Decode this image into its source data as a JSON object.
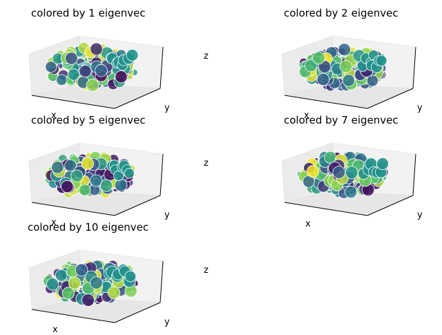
{
  "chart_data": [
    {
      "type": "scatter",
      "title": "colored by 1 eigenvec",
      "xlabel": "x",
      "ylabel": "y",
      "zlabel": "z",
      "colormap": "viridis",
      "grid": true
    },
    {
      "type": "scatter",
      "title": "colored by 2 eigenvec",
      "xlabel": "x",
      "ylabel": "y",
      "zlabel": "",
      "colormap": "viridis",
      "grid": true
    },
    {
      "type": "scatter",
      "title": "colored by 5 eigenvec",
      "xlabel": "x",
      "ylabel": "y",
      "zlabel": "z",
      "colormap": "viridis",
      "grid": true
    },
    {
      "type": "scatter",
      "title": "colored by 7 eigenvec",
      "xlabel": "x",
      "ylabel": "y",
      "zlabel": "",
      "colormap": "viridis",
      "grid": true
    },
    {
      "type": "scatter",
      "title": "colored by 10 eigenvec",
      "xlabel": "x",
      "ylabel": "y",
      "zlabel": "z",
      "colormap": "viridis",
      "grid": true
    }
  ],
  "colors": {
    "pane_left": "#ebebeb",
    "pane_right": "#f2f2f2",
    "pane_floor": "#e6e6e6",
    "axis_line": "#000000",
    "marker_edge": "#ffffff",
    "viridis": [
      "#440154",
      "#3b528b",
      "#21918c",
      "#5ec962",
      "#fde725"
    ]
  }
}
